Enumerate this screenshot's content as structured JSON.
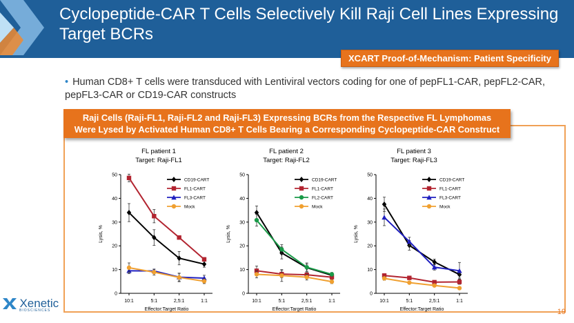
{
  "slide": {
    "title": "Cyclopeptide-CAR T Cells Selectively Kill Raji Cell Lines Expressing Target BCRs",
    "tag": "XCART Proof-of-Mechanism: Patient Specificity",
    "bullet": "Human CD8+ T cells were transduced with Lentiviral vectors coding for one of pepFL1-CAR, pepFL2-CAR, pepFL3-CAR or CD19-CAR constructs",
    "banner_line1": "Raji Cells (Raji-FL1, Raji-FL2 and Raji-FL3) Expressing BCRs from the Respective FL Lymphomas",
    "banner_line2": "Were Lysed by Activated Human CD8+ T Cells Bearing a Corresponding Cyclopeptide-CAR Construct",
    "logo_text": "Xenetic",
    "logo_sub": "BIOSCIENCES",
    "page_number": "19",
    "colors": {
      "header": "#1f5f99",
      "accent": "#e7731c"
    }
  },
  "chart_data": [
    {
      "type": "line",
      "title": "FL patient 1",
      "subtitle": "Target: Raji-FL1",
      "xlabel": "Effector:Target Ratio",
      "ylabel": "Lysis, %",
      "categories": [
        "10:1",
        "5:1",
        "2,5:1",
        "1:1"
      ],
      "ylim": [
        0,
        50
      ],
      "yticks": [
        0,
        10,
        20,
        30,
        40,
        50
      ],
      "legend": "top-right",
      "series": [
        {
          "name": "CD19-CART",
          "color": "#000000",
          "marker": "diamond",
          "values": [
            34,
            23.5,
            14.8,
            12.3
          ],
          "err": [
            3.8,
            3.3,
            2.8,
            1.3
          ]
        },
        {
          "name": "FL1-CART",
          "color": "#b22430",
          "marker": "square",
          "values": [
            48.6,
            32.5,
            23.5,
            14.3
          ],
          "err": [
            1.6,
            2.8,
            0.5,
            0.8
          ]
        },
        {
          "name": "FL3-CART",
          "color": "#1f1fbf",
          "marker": "triangle",
          "values": [
            9.5,
            9.4,
            6.8,
            6.4
          ],
          "err": [
            1.2,
            0.8,
            1.6,
            1.2
          ]
        },
        {
          "name": "Mock",
          "color": "#f0a030",
          "marker": "circle",
          "values": [
            10.8,
            8.9,
            6.7,
            5.1
          ],
          "err": [
            2.0,
            1.2,
            1.8,
            1.0
          ]
        }
      ]
    },
    {
      "type": "line",
      "title": "FL patient 2",
      "subtitle": "Target: Raji-FL2",
      "xlabel": "Effector:Target Ratio",
      "ylabel": "Lysis, %",
      "categories": [
        "10:1",
        "5:1",
        "2,5:1",
        "1:1"
      ],
      "ylim": [
        0,
        50
      ],
      "yticks": [
        0,
        10,
        20,
        30,
        40,
        50
      ],
      "legend": "top-right",
      "series": [
        {
          "name": "CD19-CART",
          "color": "#000000",
          "marker": "diamond",
          "values": [
            34,
            17,
            10.8,
            7.6
          ],
          "err": [
            2.8,
            2.5,
            1.5,
            0.8
          ]
        },
        {
          "name": "FL1-CART",
          "color": "#b22430",
          "marker": "square",
          "values": [
            9.5,
            8.1,
            7.8,
            6.8
          ],
          "err": [
            2.0,
            1.5,
            1.0,
            0.8
          ]
        },
        {
          "name": "FL2-CART",
          "color": "#1a9a48",
          "marker": "circle",
          "values": [
            30.8,
            18.5,
            11,
            8.0
          ],
          "err": [
            2.5,
            2.0,
            1.8,
            0.8
          ]
        },
        {
          "name": "Mock",
          "color": "#f0a030",
          "marker": "circle",
          "values": [
            8,
            7.5,
            6.8,
            4.9
          ],
          "err": [
            1.5,
            2.5,
            1.2,
            0.8
          ]
        }
      ]
    },
    {
      "type": "line",
      "title": "FL patient 3",
      "subtitle": "Target: Raji-FL3",
      "xlabel": "Effector:Target Ratio",
      "ylabel": "Lysis, %",
      "categories": [
        "10:1",
        "5:1",
        "2,5:1",
        "1:1"
      ],
      "ylim": [
        0,
        50
      ],
      "yticks": [
        0,
        10,
        20,
        30,
        40,
        50
      ],
      "legend": "top-right",
      "series": [
        {
          "name": "CD19-CART",
          "color": "#000000",
          "marker": "diamond",
          "values": [
            37.5,
            20.2,
            13.2,
            7.9
          ],
          "err": [
            3.0,
            2.0,
            1.2,
            1.5
          ]
        },
        {
          "name": "FL1-CART",
          "color": "#b22430",
          "marker": "square",
          "values": [
            7.5,
            6.5,
            4.7,
            4.8
          ],
          "err": [
            0.5,
            0.6,
            0.7,
            1.0
          ]
        },
        {
          "name": "FL3-CART",
          "color": "#1f1fbf",
          "marker": "triangle",
          "values": [
            32,
            21.8,
            11,
            9.5
          ],
          "err": [
            3.5,
            1.8,
            1.2,
            3.5
          ]
        },
        {
          "name": "Mock",
          "color": "#f0a030",
          "marker": "circle",
          "values": [
            6.3,
            4.5,
            3.3,
            2.2
          ],
          "err": [
            0.8,
            0.5,
            0.5,
            0.4
          ]
        }
      ]
    }
  ]
}
